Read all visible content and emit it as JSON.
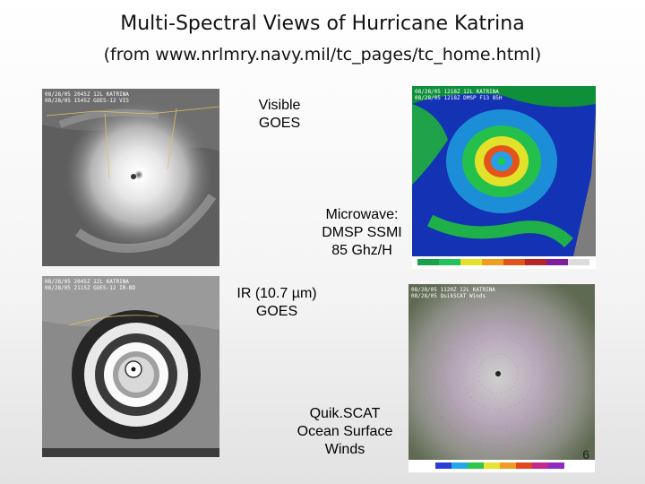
{
  "slide": {
    "title": "Multi-Spectral Views of Hurricane Katrina",
    "subtitle": "(from www.nrlmry.navy.mil/tc_pages/tc_home.html)",
    "page_number": "6"
  },
  "labels": {
    "visible": [
      "Visible",
      "GOES"
    ],
    "microwave": [
      "Microwave:",
      "DMSP SSMI",
      "85 Ghz/H"
    ],
    "ir": [
      "IR (10.7 µm)",
      "GOES"
    ],
    "quikscat": [
      "Quik.SCAT",
      "Ocean Surface",
      "Winds"
    ]
  },
  "images": {
    "visible": {
      "stamp": [
        "08/28/05 2045Z 12L KATRINA",
        "08/28/05 1545Z GOES-12 VIS"
      ]
    },
    "microwave": {
      "stamp": [
        "08/28/05 1218Z 12L KATRINA",
        "08/28/05 1218Z DMSP F13 85H"
      ]
    },
    "ir": {
      "stamp": [
        "08/28/05 2045Z 12L KATRINA",
        "08/28/05 2115Z GOES-12 IR-BD"
      ]
    },
    "quikscat": {
      "stamp": [
        "08/28/05 1120Z 12L KATRINA",
        "08/28/05 QuikSCAT Winds"
      ]
    }
  }
}
